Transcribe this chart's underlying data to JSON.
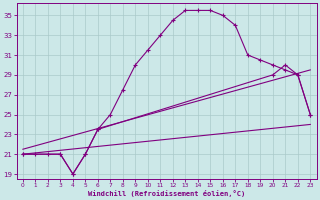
{
  "xlabel": "Windchill (Refroidissement éolien,°C)",
  "bg_color": "#cce8e8",
  "line_color": "#800080",
  "grid_color": "#aacaca",
  "xlim": [
    -0.5,
    23.5
  ],
  "ylim": [
    18.5,
    36.2
  ],
  "yticks": [
    19,
    21,
    23,
    25,
    27,
    29,
    31,
    33,
    35
  ],
  "xticks": [
    0,
    1,
    2,
    3,
    4,
    5,
    6,
    7,
    8,
    9,
    10,
    11,
    12,
    13,
    14,
    15,
    16,
    17,
    18,
    19,
    20,
    21,
    22,
    23
  ],
  "curve1_x": [
    0,
    1,
    2,
    3,
    4,
    5,
    6,
    7,
    8,
    9,
    10,
    11,
    12,
    13,
    14,
    15,
    16,
    17,
    18,
    19,
    20,
    21,
    22,
    23
  ],
  "curve1_y": [
    21,
    21,
    21,
    21,
    19,
    21,
    23.5,
    25,
    27.5,
    30,
    31.5,
    33,
    34.5,
    35.5,
    35.5,
    35.5,
    35,
    34,
    31,
    30.5,
    30,
    29.5,
    29,
    25
  ],
  "curve2_x": [
    0,
    3,
    4,
    5,
    6,
    20,
    21,
    22,
    23
  ],
  "curve2_y": [
    21,
    21,
    19,
    21,
    23.5,
    29,
    30,
    29,
    25
  ],
  "line1_x": [
    0,
    23
  ],
  "line1_y": [
    21,
    24
  ],
  "line2_x": [
    0,
    23
  ],
  "line2_y": [
    21.5,
    29.5
  ]
}
